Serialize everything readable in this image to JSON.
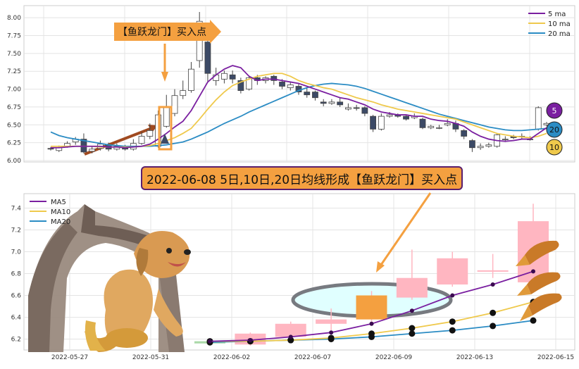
{
  "banner_text": "2022-06-08 5日,10日,20日均线形成【鱼跃龙门】买入点",
  "callout_text": "【鱼跃龙门】买入点",
  "badges": [
    "5",
    "20",
    "10"
  ],
  "colors": {
    "ma5": "#7a1fa0",
    "ma10": "#efc94c",
    "ma20": "#2b8cc4",
    "up": "#ffffff",
    "down": "#3c4a66",
    "highlight": "#f4a040",
    "up2": "#ffb6c1"
  },
  "chart_data": [
    {
      "type": "candlestick",
      "legend": [
        "5 ma",
        "10 ma",
        "20 ma"
      ],
      "legend_position": "top-right",
      "grid": true,
      "ylim": [
        6.0,
        8.1
      ],
      "yticks": [
        "6.00",
        "6.25",
        "6.50",
        "6.75",
        "7.00",
        "7.25",
        "7.50",
        "7.75",
        "8.00"
      ],
      "candles": [
        {
          "o": 6.17,
          "c": 6.16,
          "h": 6.19,
          "l": 6.14
        },
        {
          "o": 6.14,
          "c": 6.18,
          "h": 6.21,
          "l": 6.12
        },
        {
          "o": 6.2,
          "c": 6.24,
          "h": 6.27,
          "l": 6.18
        },
        {
          "o": 6.26,
          "c": 6.3,
          "h": 6.33,
          "l": 6.22
        },
        {
          "o": 6.3,
          "c": 6.12,
          "h": 6.38,
          "l": 6.1
        },
        {
          "o": 6.13,
          "c": 6.16,
          "h": 6.2,
          "l": 6.1
        },
        {
          "o": 6.17,
          "c": 6.23,
          "h": 6.28,
          "l": 6.14
        },
        {
          "o": 6.22,
          "c": 6.16,
          "h": 6.25,
          "l": 6.13
        },
        {
          "o": 6.16,
          "c": 6.2,
          "h": 6.24,
          "l": 6.14
        },
        {
          "o": 6.19,
          "c": 6.16,
          "h": 6.22,
          "l": 6.14
        },
        {
          "o": 6.16,
          "c": 6.24,
          "h": 6.3,
          "l": 6.14
        },
        {
          "o": 6.24,
          "c": 6.34,
          "h": 6.4,
          "l": 6.22
        },
        {
          "o": 6.34,
          "c": 6.42,
          "h": 6.52,
          "l": 6.3
        },
        {
          "o": 6.2,
          "c": 6.64,
          "h": 6.7,
          "l": 6.18
        },
        {
          "o": 6.48,
          "c": 6.76,
          "h": 6.92,
          "l": 6.46
        },
        {
          "o": 6.66,
          "c": 6.91,
          "h": 7.0,
          "l": 6.62
        },
        {
          "o": 6.91,
          "c": 6.98,
          "h": 7.12,
          "l": 6.86
        },
        {
          "o": 6.98,
          "c": 7.28,
          "h": 7.38,
          "l": 6.95
        },
        {
          "o": 7.4,
          "c": 7.95,
          "h": 8.08,
          "l": 7.3
        },
        {
          "o": 7.66,
          "c": 7.22,
          "h": 7.72,
          "l": 7.1
        },
        {
          "o": 7.12,
          "c": 7.2,
          "h": 7.3,
          "l": 7.05
        },
        {
          "o": 7.14,
          "c": 7.22,
          "h": 7.26,
          "l": 7.08
        },
        {
          "o": 7.2,
          "c": 7.14,
          "h": 7.26,
          "l": 7.08
        },
        {
          "o": 7.12,
          "c": 6.98,
          "h": 7.16,
          "l": 6.94
        },
        {
          "o": 7.0,
          "c": 7.16,
          "h": 7.18,
          "l": 6.98
        },
        {
          "o": 7.16,
          "c": 7.12,
          "h": 7.2,
          "l": 7.06
        },
        {
          "o": 7.12,
          "c": 7.16,
          "h": 7.18,
          "l": 7.08
        },
        {
          "o": 7.18,
          "c": 7.12,
          "h": 7.2,
          "l": 7.06
        },
        {
          "o": 7.1,
          "c": 7.04,
          "h": 7.14,
          "l": 7.0
        },
        {
          "o": 7.02,
          "c": 7.06,
          "h": 7.1,
          "l": 6.98
        },
        {
          "o": 7.04,
          "c": 6.96,
          "h": 7.08,
          "l": 6.92
        },
        {
          "o": 6.96,
          "c": 6.92,
          "h": 7.02,
          "l": 6.88
        },
        {
          "o": 6.96,
          "c": 6.88,
          "h": 6.98,
          "l": 6.84
        },
        {
          "o": 6.82,
          "c": 6.8,
          "h": 6.86,
          "l": 6.76
        },
        {
          "o": 6.8,
          "c": 6.82,
          "h": 6.86,
          "l": 6.78
        },
        {
          "o": 6.82,
          "c": 6.78,
          "h": 6.88,
          "l": 6.75
        },
        {
          "o": 6.72,
          "c": 6.74,
          "h": 6.8,
          "l": 6.7
        },
        {
          "o": 6.74,
          "c": 6.73,
          "h": 6.78,
          "l": 6.7
        },
        {
          "o": 6.74,
          "c": 6.66,
          "h": 6.76,
          "l": 6.62
        },
        {
          "o": 6.62,
          "c": 6.44,
          "h": 6.64,
          "l": 6.4
        },
        {
          "o": 6.44,
          "c": 6.62,
          "h": 6.66,
          "l": 6.42
        },
        {
          "o": 6.62,
          "c": 6.64,
          "h": 6.68,
          "l": 6.6
        },
        {
          "o": 6.64,
          "c": 6.62,
          "h": 6.66,
          "l": 6.6
        },
        {
          "o": 6.62,
          "c": 6.58,
          "h": 6.64,
          "l": 6.56
        },
        {
          "o": 6.6,
          "c": 6.62,
          "h": 6.66,
          "l": 6.58
        },
        {
          "o": 6.58,
          "c": 6.46,
          "h": 6.6,
          "l": 6.44
        },
        {
          "o": 6.46,
          "c": 6.48,
          "h": 6.5,
          "l": 6.44
        },
        {
          "o": 6.46,
          "c": 6.46,
          "h": 6.5,
          "l": 6.44
        },
        {
          "o": 6.5,
          "c": 6.52,
          "h": 6.58,
          "l": 6.48
        },
        {
          "o": 6.52,
          "c": 6.44,
          "h": 6.56,
          "l": 6.4
        },
        {
          "o": 6.42,
          "c": 6.34,
          "h": 6.44,
          "l": 6.3
        },
        {
          "o": 6.28,
          "c": 6.18,
          "h": 6.3,
          "l": 6.12
        },
        {
          "o": 6.18,
          "c": 6.2,
          "h": 6.24,
          "l": 6.15
        },
        {
          "o": 6.2,
          "c": 6.22,
          "h": 6.25,
          "l": 6.18
        },
        {
          "o": 6.2,
          "c": 6.36,
          "h": 6.38,
          "l": 6.18
        },
        {
          "o": 6.3,
          "c": 6.3,
          "h": 6.34,
          "l": 6.26
        },
        {
          "o": 6.34,
          "c": 6.32,
          "h": 6.36,
          "l": 6.3
        },
        {
          "o": 6.34,
          "c": 6.34,
          "h": 6.38,
          "l": 6.3
        },
        {
          "o": 6.3,
          "c": 6.3,
          "h": 6.34,
          "l": 6.28
        },
        {
          "o": 6.44,
          "c": 6.74,
          "h": 6.76,
          "l": 6.42
        },
        {
          "o": 6.5,
          "c": 6.52,
          "h": 6.54,
          "l": 6.48
        }
      ],
      "ma5": [
        6.18,
        6.18,
        6.19,
        6.2,
        6.2,
        6.2,
        6.2,
        6.19,
        6.19,
        6.18,
        6.19,
        6.2,
        6.23,
        6.3,
        6.38,
        6.47,
        6.55,
        6.7,
        6.9,
        7.1,
        7.2,
        7.28,
        7.33,
        7.3,
        7.18,
        7.12,
        7.14,
        7.14,
        7.12,
        7.1,
        7.08,
        7.04,
        7.0,
        6.96,
        6.92,
        6.88,
        6.86,
        6.82,
        6.78,
        6.72,
        6.68,
        6.66,
        6.64,
        6.64,
        6.62,
        6.62,
        6.58,
        6.56,
        6.55,
        6.52,
        6.48,
        6.4,
        6.34,
        6.3,
        6.28,
        6.27,
        6.28,
        6.3,
        6.3,
        6.38,
        6.46
      ],
      "ma10": [
        6.2,
        6.2,
        6.2,
        6.2,
        6.2,
        6.2,
        6.19,
        6.19,
        6.19,
        6.19,
        6.19,
        6.2,
        6.21,
        6.24,
        6.28,
        6.32,
        6.38,
        6.45,
        6.58,
        6.72,
        6.85,
        6.96,
        7.05,
        7.1,
        7.14,
        7.18,
        7.2,
        7.22,
        7.22,
        7.18,
        7.12,
        7.08,
        7.05,
        7.02,
        7.0,
        6.96,
        6.92,
        6.88,
        6.85,
        6.82,
        6.78,
        6.75,
        6.72,
        6.7,
        6.68,
        6.66,
        6.64,
        6.62,
        6.6,
        6.58,
        6.54,
        6.5,
        6.46,
        6.42,
        6.38,
        6.36,
        6.34,
        6.33,
        6.32,
        6.34,
        6.38
      ],
      "ma20": [
        6.4,
        6.35,
        6.32,
        6.3,
        6.28,
        6.26,
        6.24,
        6.22,
        6.21,
        6.2,
        6.2,
        6.2,
        6.2,
        6.21,
        6.22,
        6.24,
        6.26,
        6.3,
        6.35,
        6.4,
        6.46,
        6.52,
        6.57,
        6.62,
        6.68,
        6.73,
        6.78,
        6.83,
        6.88,
        6.93,
        6.98,
        7.02,
        7.05,
        7.07,
        7.08,
        7.07,
        7.06,
        7.04,
        7.01,
        6.97,
        6.93,
        6.89,
        6.85,
        6.81,
        6.77,
        6.73,
        6.69,
        6.65,
        6.62,
        6.59,
        6.56,
        6.53,
        6.5,
        6.47,
        6.45,
        6.43,
        6.42,
        6.42,
        6.43,
        6.44,
        6.45
      ]
    },
    {
      "type": "candlestick",
      "legend": [
        "MA5",
        "MA10",
        "MA20"
      ],
      "legend_position": "top-left",
      "grid": true,
      "ylim": [
        6.1,
        7.5
      ],
      "yticks": [
        "6.2",
        "6.4",
        "6.6",
        "6.8",
        "7.0",
        "7.2",
        "7.4"
      ],
      "xticks": [
        "2022-05-27",
        "2022-05-31",
        "2022-06-02",
        "2022-06-07",
        "2022-06-09",
        "2022-06-13",
        "2022-06-15"
      ],
      "candles": [
        {
          "o": 6.18,
          "c": 6.16,
          "h": 6.19,
          "l": 6.14
        },
        {
          "o": 6.15,
          "c": 6.25,
          "h": 6.26,
          "l": 6.14
        },
        {
          "o": 6.22,
          "c": 6.34,
          "h": 6.36,
          "l": 6.2
        },
        {
          "o": 6.34,
          "c": 6.38,
          "h": 6.48,
          "l": 6.28
        },
        {
          "o": 6.38,
          "c": 6.6,
          "h": 6.64,
          "l": 6.36
        },
        {
          "o": 6.58,
          "c": 6.76,
          "h": 7.02,
          "l": 6.56
        },
        {
          "o": 6.7,
          "c": 6.94,
          "h": 7.0,
          "l": 6.68
        },
        {
          "o": 6.82,
          "c": 6.83,
          "h": 6.98,
          "l": 6.76
        },
        {
          "o": 6.72,
          "c": 7.28,
          "h": 7.44,
          "l": 6.7
        }
      ],
      "ma5": [
        6.18,
        6.19,
        6.22,
        6.26,
        6.34,
        6.46,
        6.6,
        6.7,
        6.82
      ],
      "ma10": [
        6.18,
        6.18,
        6.19,
        6.21,
        6.25,
        6.3,
        6.36,
        6.44,
        6.54
      ],
      "ma20": [
        6.17,
        6.18,
        6.19,
        6.2,
        6.22,
        6.25,
        6.28,
        6.32,
        6.37
      ]
    }
  ]
}
